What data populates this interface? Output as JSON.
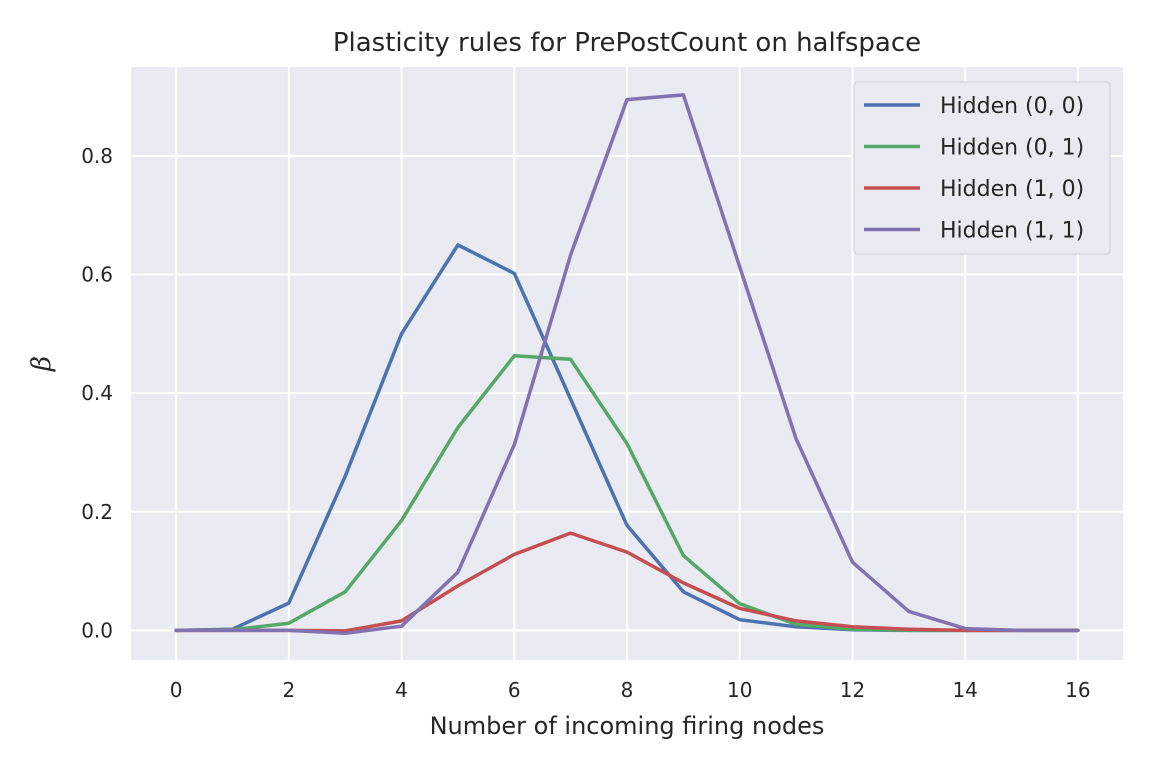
{
  "chart_data": {
    "type": "line",
    "title": "Plasticity rules for PrePostCount on halfspace",
    "xlabel": "Number of incoming firing nodes",
    "ylabel": "β",
    "xlim": [
      -0.8,
      16.8
    ],
    "ylim": [
      -0.05,
      0.95
    ],
    "xticks": [
      0,
      2,
      4,
      6,
      8,
      10,
      12,
      14,
      16
    ],
    "yticks": [
      0.0,
      0.2,
      0.4,
      0.6,
      0.8
    ],
    "ytick_labels": [
      "0.0",
      "0.2",
      "0.4",
      "0.6",
      "0.8"
    ],
    "grid": true,
    "legend_position": "top-right",
    "background": "#eaeaf2",
    "x": [
      0,
      1,
      2,
      3,
      4,
      5,
      6,
      7,
      8,
      9,
      10,
      11,
      12,
      13,
      14,
      15,
      16
    ],
    "series": [
      {
        "name": "Hidden (0, 0)",
        "color": "#4c72b0",
        "values": [
          0.0,
          0.002,
          0.046,
          0.26,
          0.5,
          0.65,
          0.602,
          0.39,
          0.177,
          0.065,
          0.018,
          0.006,
          0.001,
          0.0,
          0.0,
          0.0,
          0.0
        ]
      },
      {
        "name": "Hidden (0, 1)",
        "color": "#55a868",
        "values": [
          0.0,
          0.001,
          0.012,
          0.065,
          0.185,
          0.342,
          0.463,
          0.457,
          0.315,
          0.126,
          0.045,
          0.01,
          0.002,
          0.0,
          0.0,
          0.0,
          0.0
        ]
      },
      {
        "name": "Hidden (1, 0)",
        "color": "#c44e52",
        "values": [
          0.0,
          0.0,
          0.0,
          -0.001,
          0.016,
          0.075,
          0.128,
          0.164,
          0.132,
          0.08,
          0.037,
          0.016,
          0.006,
          0.002,
          0.0,
          0.0,
          0.0
        ]
      },
      {
        "name": "Hidden (1, 1)",
        "color": "#8172b2",
        "values": [
          0.0,
          0.0,
          0.0,
          -0.005,
          0.007,
          0.098,
          0.313,
          0.633,
          0.895,
          0.903,
          0.613,
          0.323,
          0.115,
          0.032,
          0.003,
          0.0,
          0.0
        ]
      }
    ]
  }
}
